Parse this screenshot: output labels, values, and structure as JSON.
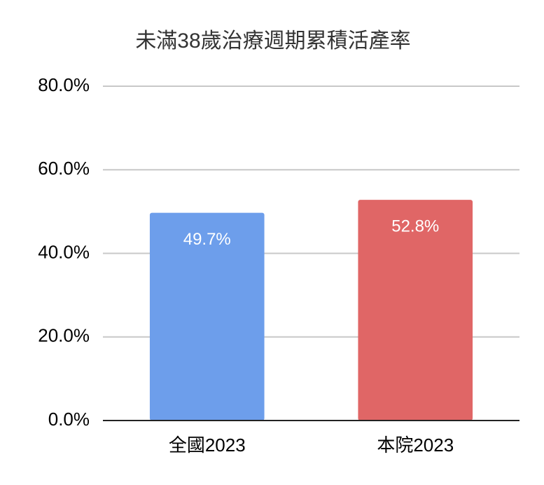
{
  "chart_data": {
    "type": "bar",
    "title": "未滿38歲治療週期累積活產率",
    "categories": [
      "全國2023",
      "本院2023"
    ],
    "values": [
      49.7,
      52.8
    ],
    "value_labels": [
      "49.7%",
      "52.8%"
    ],
    "colors": [
      "#6d9eeb",
      "#e06666"
    ],
    "ylim": [
      0,
      80
    ],
    "yticks": [
      {
        "value": 0,
        "label": "0.0%"
      },
      {
        "value": 20,
        "label": "20.0%"
      },
      {
        "value": 40,
        "label": "40.0%"
      },
      {
        "value": 60,
        "label": "60.0%"
      },
      {
        "value": 80,
        "label": "80.0%"
      }
    ],
    "grid": true
  }
}
